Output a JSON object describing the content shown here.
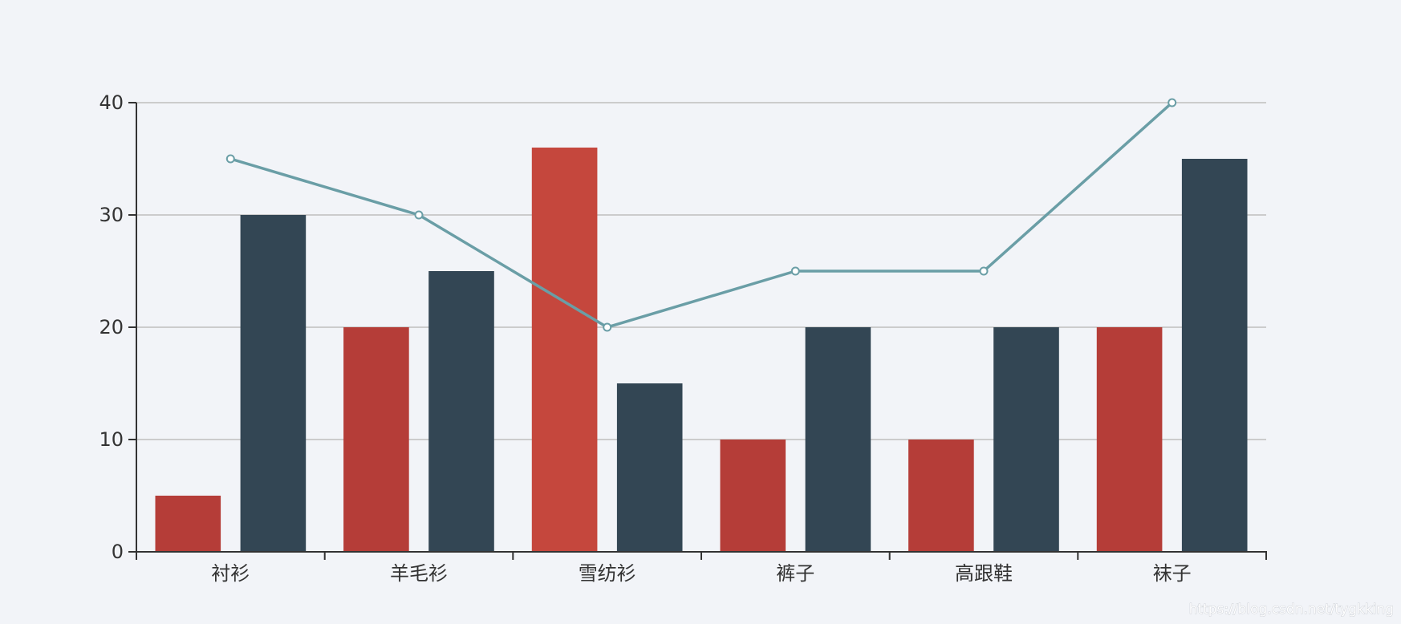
{
  "chart_data": {
    "type": "bar",
    "categories": [
      "衬衫",
      "羊毛衫",
      "雪纺衫",
      "裤子",
      "高跟鞋",
      "袜子"
    ],
    "series": [
      {
        "type": "bar",
        "values": [
          5,
          20,
          36,
          10,
          10,
          20
        ],
        "color": "#b53d38",
        "colors": [
          "#b53d38",
          "#b53d38",
          "#c5473d",
          "#b53d38",
          "#b53d38",
          "#b53d38"
        ]
      },
      {
        "type": "bar",
        "values": [
          30,
          25,
          15,
          20,
          20,
          35
        ],
        "color": "#334654"
      },
      {
        "type": "line",
        "values": [
          35,
          30,
          20,
          25,
          25,
          40
        ],
        "color": "#6a9ea6"
      }
    ],
    "ylim": [
      0,
      40
    ],
    "yticks": [
      0,
      10,
      20,
      30,
      40
    ],
    "grid": true,
    "legend": "none"
  },
  "watermark": "https://blog.csdn.net/tygkking"
}
